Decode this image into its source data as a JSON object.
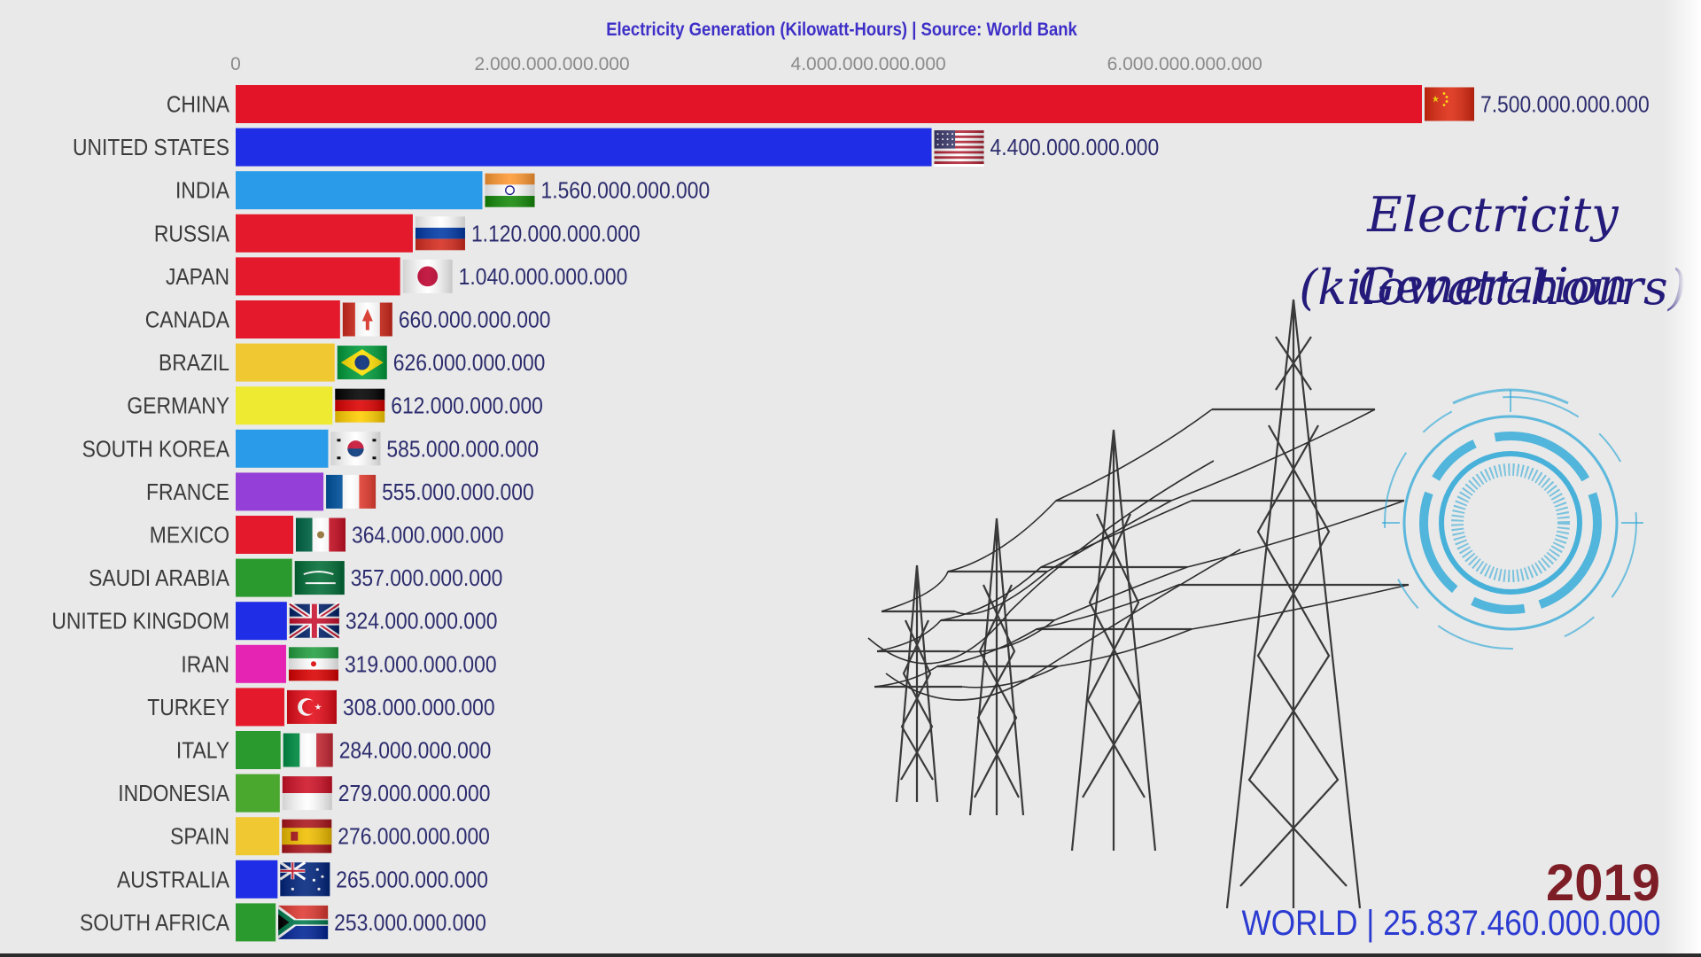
{
  "chart_data": {
    "type": "bar",
    "orientation": "horizontal",
    "title": "Electricity Generation (Kilowatt-Hours) | Source: World Bank",
    "xlim": [
      0,
      7500000000000
    ],
    "ticks": [
      {
        "value": 0,
        "label": "0"
      },
      {
        "value": 2000000000000,
        "label": "2.000.000.000.000"
      },
      {
        "value": 4000000000000,
        "label": "4.000.000.000.000"
      },
      {
        "value": 6000000000000,
        "label": "6.000.000.000.000"
      }
    ],
    "grid": false,
    "categories": [
      "CHINA",
      "UNITED STATES",
      "INDIA",
      "RUSSIA",
      "JAPAN",
      "CANADA",
      "BRAZIL",
      "GERMANY",
      "SOUTH KOREA",
      "FRANCE",
      "MEXICO",
      "SAUDI ARABIA",
      "UNITED KINGDOM",
      "IRAN",
      "TURKEY",
      "ITALY",
      "INDONESIA",
      "SPAIN",
      "AUSTRALIA",
      "SOUTH AFRICA"
    ],
    "values": [
      7500000000000,
      4400000000000,
      1560000000000,
      1120000000000,
      1040000000000,
      660000000000,
      626000000000,
      612000000000,
      585000000000,
      555000000000,
      364000000000,
      357000000000,
      324000000000,
      319000000000,
      308000000000,
      284000000000,
      279000000000,
      276000000000,
      265000000000,
      253000000000
    ],
    "value_labels": [
      "7.500.000.000.000",
      "4.400.000.000.000",
      "1.560.000.000.000",
      "1.120.000.000.000",
      "1.040.000.000.000",
      "660.000.000.000",
      "626.000.000.000",
      "612.000.000.000",
      "585.000.000.000",
      "555.000.000.000",
      "364.000.000.000",
      "357.000.000.000",
      "324.000.000.000",
      "319.000.000.000",
      "308.000.000.000",
      "284.000.000.000",
      "279.000.000.000",
      "276.000.000.000",
      "265.000.000.000",
      "253.000.000.000"
    ],
    "bar_colors": [
      "#e31428",
      "#1f2ee6",
      "#2a9be8",
      "#e41a2c",
      "#e41a2c",
      "#e41a2c",
      "#f0c832",
      "#eeea32",
      "#2a9be8",
      "#9440d8",
      "#e41a2c",
      "#2a9a2e",
      "#1f2ee6",
      "#e624b4",
      "#e41a2c",
      "#2a9a2e",
      "#4aa82e",
      "#f0c832",
      "#1f2ee6",
      "#2a9a2e"
    ],
    "flags": [
      "china-flag",
      "usa-flag",
      "india-flag",
      "russia-flag",
      "japan-flag",
      "canada-flag",
      "brazil-flag",
      "germany-flag",
      "south-korea-flag",
      "france-flag",
      "mexico-flag",
      "saudi-arabia-flag",
      "uk-flag",
      "iran-flag",
      "turkey-flag",
      "italy-flag",
      "indonesia-flag",
      "spain-flag",
      "australia-flag",
      "south-africa-flag"
    ]
  },
  "overlay": {
    "script_title_line1": "Electricity Generation",
    "script_title_line2": "(kilowatt-hours)",
    "year": "2019",
    "world_total": "WORLD | 25.837.460.000.000",
    "illustration": "power-transmission-towers",
    "decoration": "circular-hud-graphic"
  },
  "colors": {
    "title": "#3d2fc7",
    "labels": "#3b3b3b",
    "values": "#2c2c6e",
    "year": "#7d1e27",
    "world": "#2b3bd1",
    "script_title": "#231a7a",
    "hud": "#1fa3d6"
  }
}
